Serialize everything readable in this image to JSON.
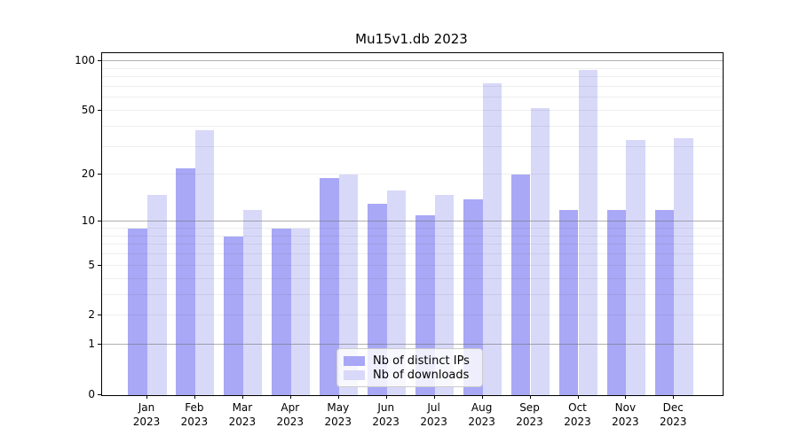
{
  "title": "Mu15v1.db 2023",
  "colors": {
    "ips_bar": "#a8a8f6",
    "downloads_bar": "#d8d8f9",
    "grid_major": "#b0b0b0",
    "grid_minor": "#e8e8e8",
    "axis": "#000000",
    "legend_border": "#cccccc"
  },
  "chart_data": {
    "type": "bar",
    "title": "Mu15v1.db 2023",
    "scale": "log1p (symlog-like: ticks 0,1,2,5,10,20,50,100)",
    "grid": true,
    "legend_position": "lower center",
    "months": [
      "Jan",
      "Feb",
      "Mar",
      "Apr",
      "May",
      "Jun",
      "Jul",
      "Aug",
      "Sep",
      "Oct",
      "Nov",
      "Dec"
    ],
    "year_label": "2023",
    "y_ticks": [
      0,
      1,
      2,
      5,
      10,
      20,
      50,
      100
    ],
    "y_minor_ticks": [
      3,
      4,
      6,
      7,
      8,
      9,
      30,
      40,
      60,
      70,
      80,
      90
    ],
    "ylim": [
      0,
      112
    ],
    "series": [
      {
        "name": "Nb of distinct IPs",
        "color": "#a8a8f6",
        "values": [
          9,
          22,
          8,
          9,
          19,
          13,
          11,
          14,
          20,
          12,
          12,
          12
        ]
      },
      {
        "name": "Nb of downloads",
        "color": "#d8d8f9",
        "values": [
          15,
          38,
          12,
          9,
          20,
          16,
          15,
          73,
          52,
          88,
          33,
          34
        ]
      }
    ]
  },
  "legend": {
    "item1": "Nb of distinct IPs",
    "item2": "Nb of downloads"
  }
}
